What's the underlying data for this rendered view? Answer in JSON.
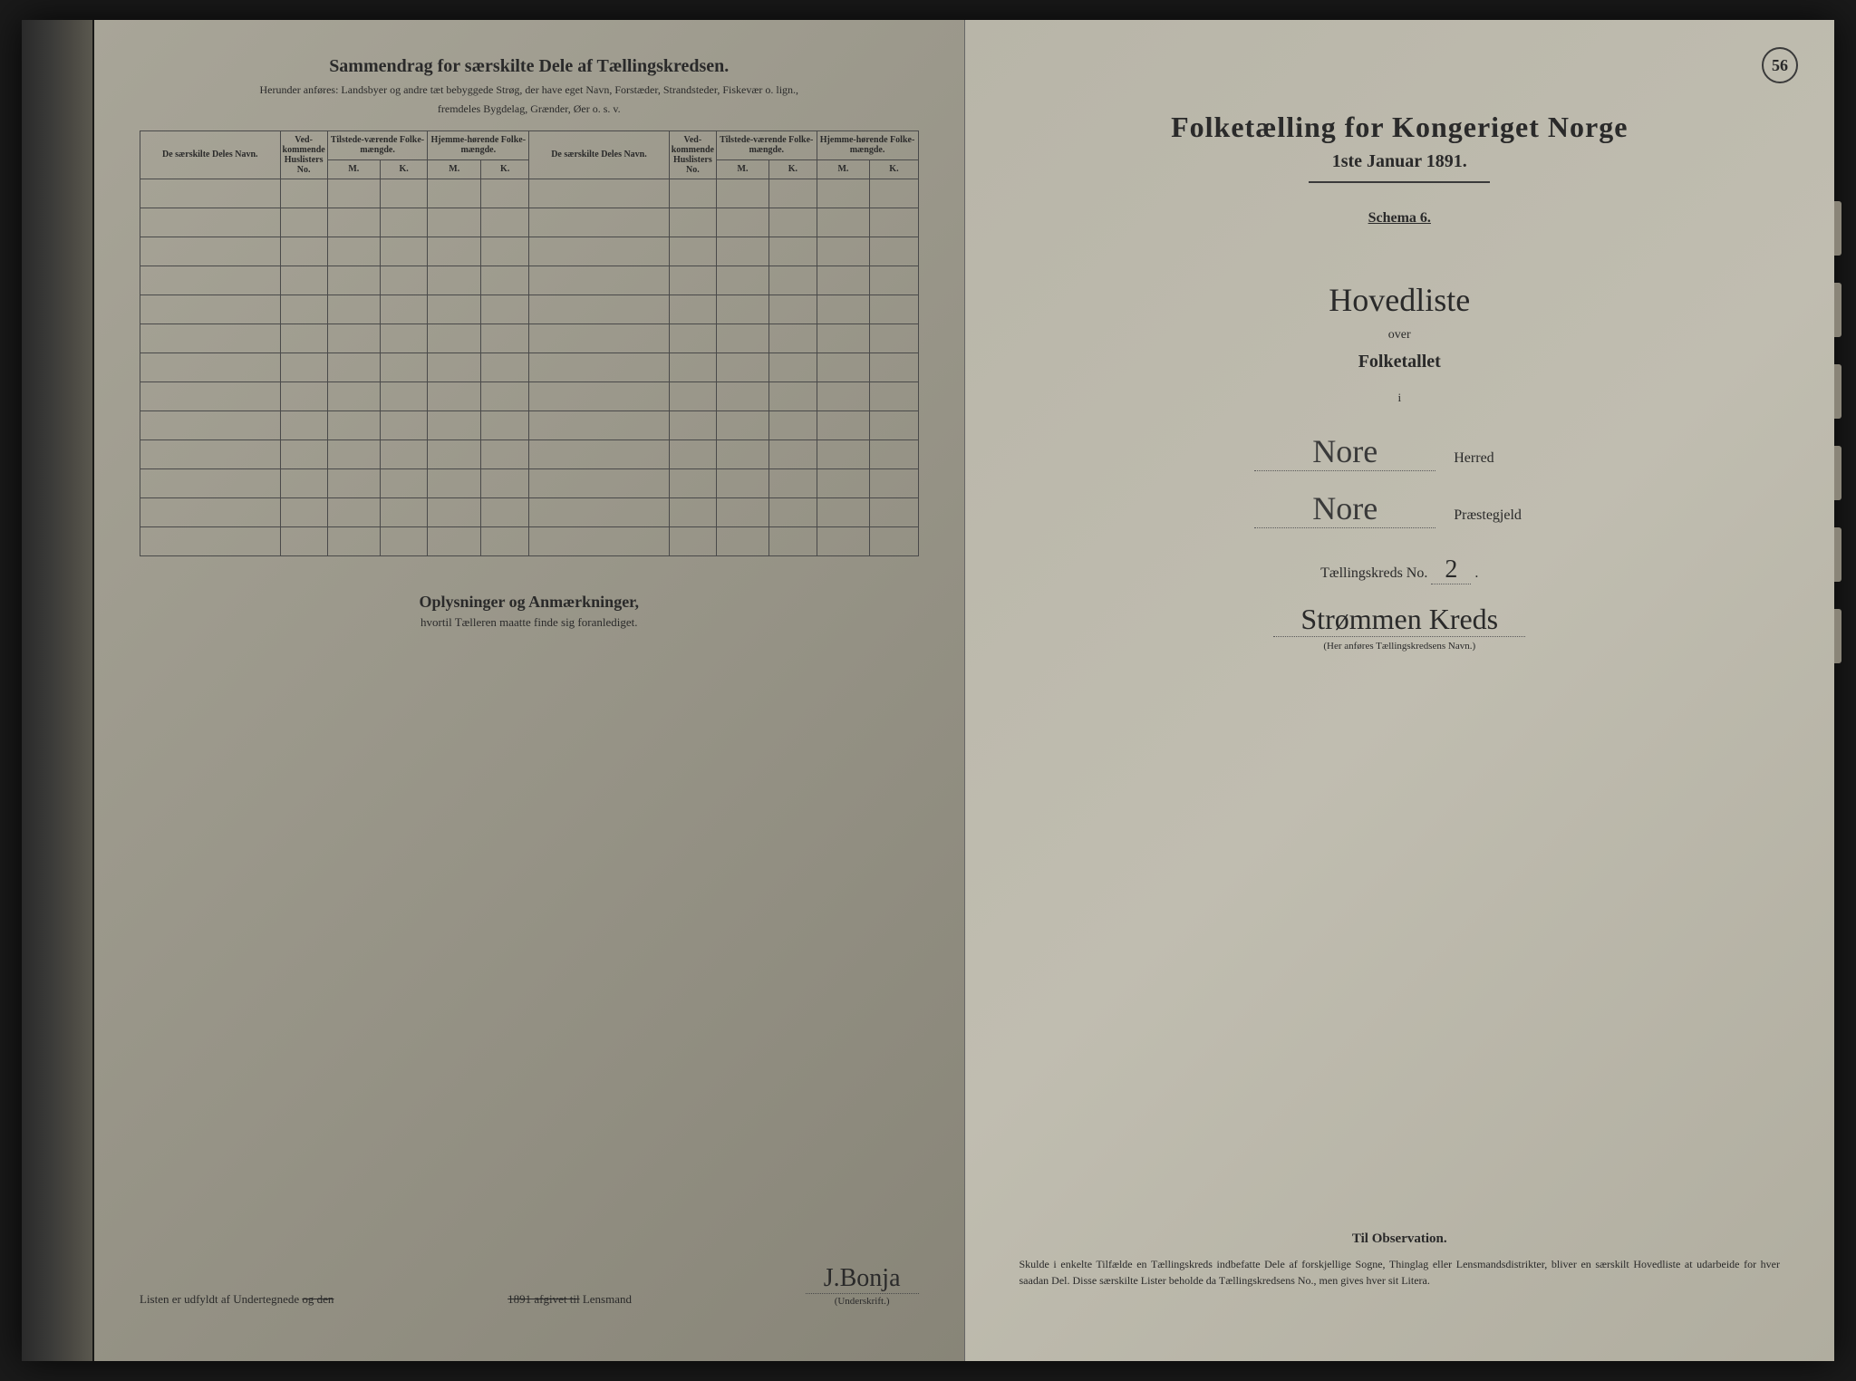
{
  "page_number": "56",
  "left_page": {
    "title": "Sammendrag for særskilte Dele af Tællingskredsen.",
    "subtitle1": "Herunder anføres: Landsbyer og andre tæt bebyggede Strøg, der have eget Navn, Forstæder, Strandsteder, Fiskevær o. lign.,",
    "subtitle2": "fremdeles Bygdelag, Grænder, Øer o. s. v.",
    "columns": {
      "col1": "De særskilte Deles Navn.",
      "col2": "Ved-kommende Huslisters No.",
      "col3": "Tilstede-værende Folke-mængde.",
      "col4": "Hjemme-hørende Folke-mængde.",
      "col5": "De særskilte Deles Navn.",
      "col6": "Ved-kommende Huslisters No.",
      "col7": "Tilstede-værende Folke-mængde.",
      "col8": "Hjemme-hørende Folke-mængde.",
      "mk_m": "M.",
      "mk_k": "K."
    },
    "notes_title": "Oplysninger og Anmærkninger,",
    "notes_sub": "hvortil Tælleren maatte finde sig foranlediget.",
    "footer_text": "Listen er udfyldt af Undertegnede",
    "footer_strike": "og den",
    "footer_date_strike": "1891 afgivet til",
    "footer_role": "Lensmand",
    "signature": "J.Bonja",
    "signature_label": "(Underskrift.)"
  },
  "right_page": {
    "census_title": "Folketælling for Kongeriget Norge",
    "census_date": "1ste Januar 1891.",
    "schema": "Schema 6.",
    "main_list": "Hovedliste",
    "over": "over",
    "folketallet": "Folketallet",
    "small_i": "i",
    "herred_value": "Nore",
    "herred_label": "Herred",
    "praestegjeld_value": "Nore",
    "praestegjeld_label": "Præstegjeld",
    "kreds_label": "Tællingskreds No.",
    "kreds_no": "2",
    "kreds_name": "Strømmen Kreds",
    "kreds_hint": "(Her anføres Tællingskredsens Navn.)",
    "obs_title": "Til Observation.",
    "obs_text": "Skulde i enkelte Tilfælde en Tællingskreds indbefatte Dele af forskjellige Sogne, Thinglag eller Lensmandsdistrikter, bliver en særskilt Hovedliste at udarbeide for hver saadan Del. Disse særskilte Lister beholde da Tællingskredsens No., men gives hver sit Litera."
  },
  "styling": {
    "page_bg": "#b0ad9f",
    "text_color": "#2a2a2a",
    "border_color": "#4a4a4a",
    "handwriting_color": "#3a3a3a",
    "num_blank_rows": 13
  }
}
